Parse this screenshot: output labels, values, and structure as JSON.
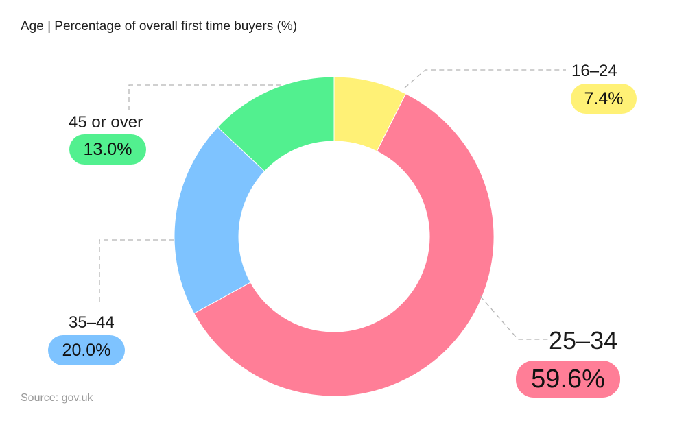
{
  "title": "Age | Percentage of overall first time buyers (%)",
  "source": "Source: gov.uk",
  "colors": {
    "16_24": "#fff176",
    "25_34": "#ff7e97",
    "35_44": "#7ec3ff",
    "45_over": "#52f08f",
    "leader": "#b5b5b5"
  },
  "segments": [
    {
      "label": "16–24",
      "value_text": "7.4%",
      "color": "#fff176"
    },
    {
      "label": "25–34",
      "value_text": "59.6%",
      "color": "#ff7e97"
    },
    {
      "label": "35–44",
      "value_text": "20.0%",
      "color": "#7ec3ff"
    },
    {
      "label": "45 or over",
      "value_text": "13.0%",
      "color": "#52f08f"
    }
  ],
  "chart_data": {
    "type": "pie",
    "subtype": "donut",
    "title": "Age | Percentage of overall first time buyers (%)",
    "categories": [
      "16–24",
      "25–34",
      "35–44",
      "45 or over"
    ],
    "values": [
      7.4,
      59.6,
      20.0,
      13.0
    ],
    "unit": "%",
    "colors": [
      "#fff176",
      "#ff7e97",
      "#7ec3ff",
      "#52f08f"
    ],
    "start_angle": "12 o'clock, clockwise",
    "legend": "none (callout labels with dashed leader lines)",
    "source": "Source: gov.uk"
  }
}
